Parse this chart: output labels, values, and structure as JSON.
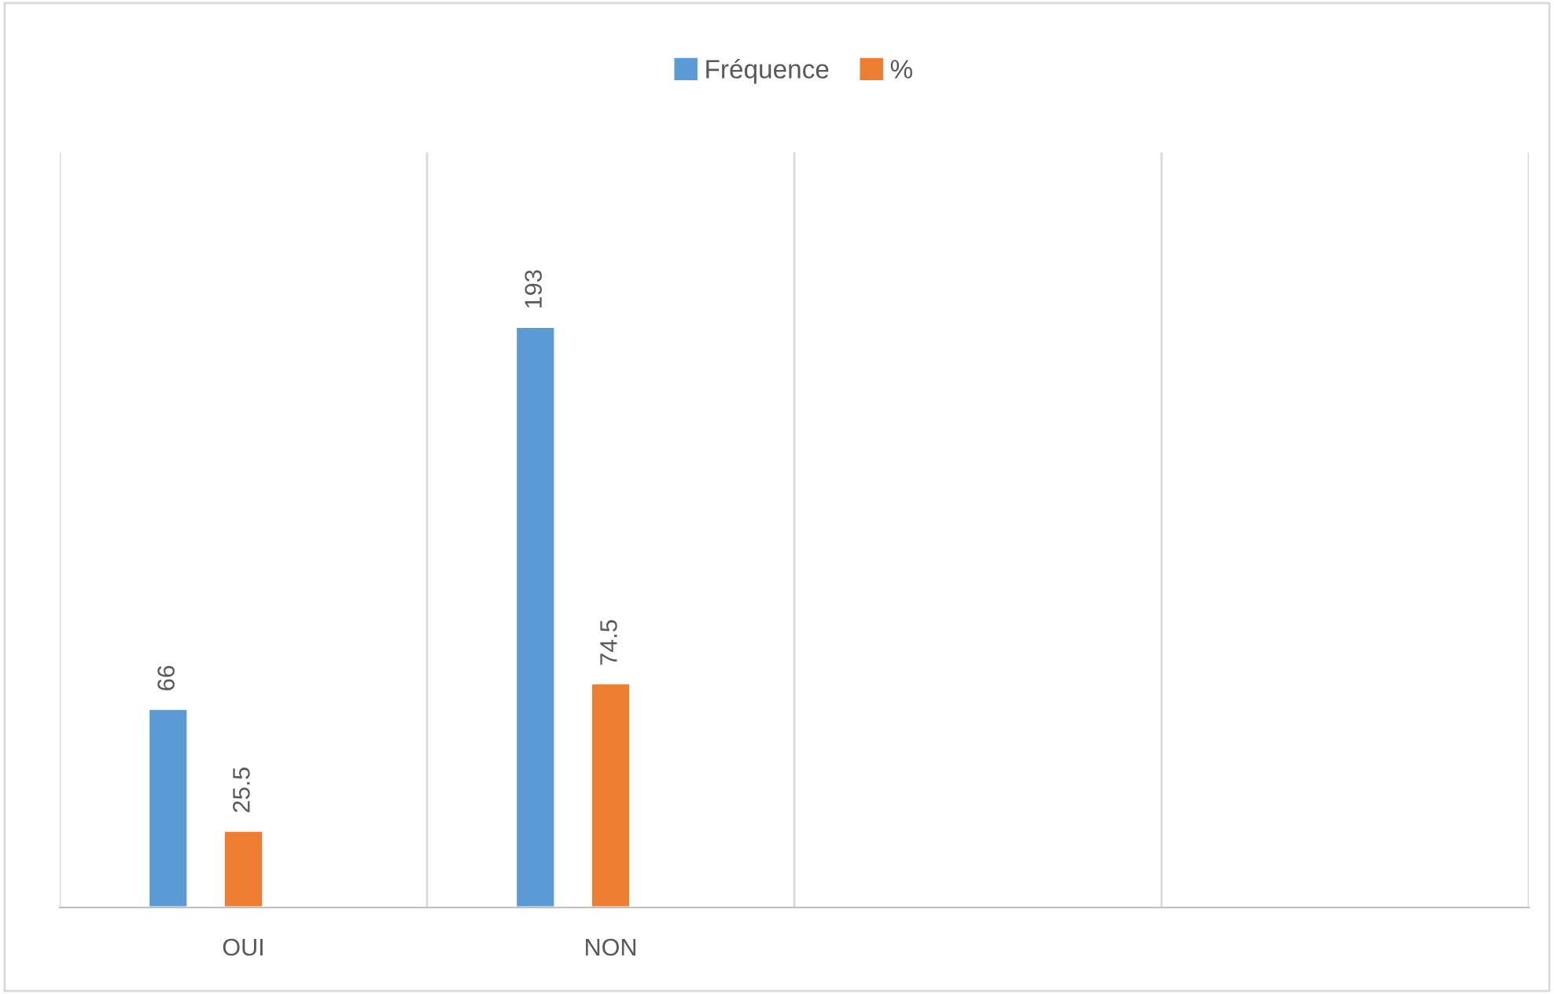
{
  "chart_data": {
    "type": "bar",
    "categories": [
      "OUI",
      "NON",
      null,
      null
    ],
    "series": [
      {
        "name": "Fréquence",
        "color": "#5b9bd5",
        "values": [
          66,
          193,
          null,
          null
        ]
      },
      {
        "name": "%",
        "color": "#ed7d31",
        "values": [
          25.5,
          74.5,
          null,
          null
        ]
      }
    ],
    "data_labels": true,
    "grid": "x",
    "legend": "top"
  }
}
